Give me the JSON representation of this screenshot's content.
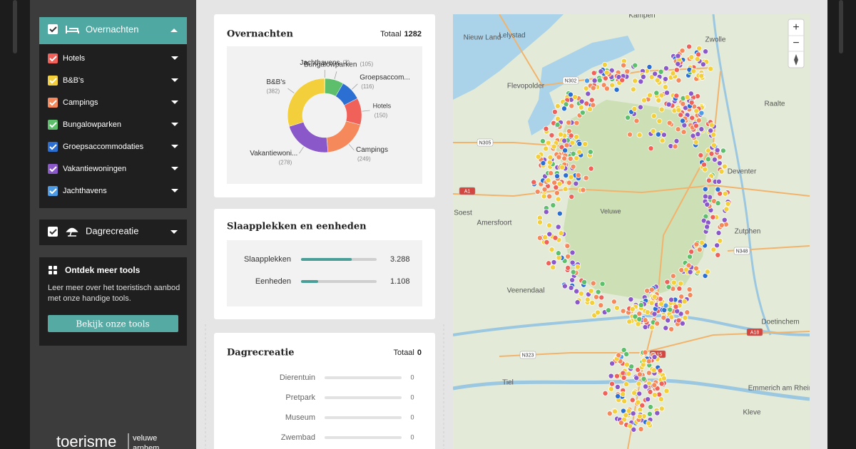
{
  "sidebar": {
    "overnachten": {
      "title": "Overnachten",
      "items": [
        {
          "label": "Hotels",
          "color": "#ef6159"
        },
        {
          "label": "B&B's",
          "color": "#f4cf3c"
        },
        {
          "label": "Campings",
          "color": "#f6895c"
        },
        {
          "label": "Bungalowparken",
          "color": "#5dbf6b"
        },
        {
          "label": "Groepsaccommodaties",
          "color": "#2c6fd3"
        },
        {
          "label": "Vakantiewoningen",
          "color": "#8a58c9"
        },
        {
          "label": "Jachthavens",
          "color": "#4b9be6"
        }
      ]
    },
    "dagrecreatie": {
      "title": "Dagrecreatie"
    },
    "tools": {
      "title": "Ontdek meer tools",
      "text_lines": [
        "Leer meer over het toeristisch aanbod",
        "met onze handige tools."
      ],
      "button": "Bekijk onze tools"
    },
    "logo": {
      "brand": "toerisme",
      "region": "veluwe",
      "city": "arnhem"
    }
  },
  "chart_data": [
    {
      "type": "pie",
      "title": "Overnachten",
      "total_label": "Totaal",
      "total": 1282,
      "categories": [
        "Jachthavens",
        "Bungalowparken",
        "Groepsaccom...",
        "Hotels",
        "Campings",
        "Vakantiewoni...",
        "B&B's"
      ],
      "values": [
        2,
        105,
        116,
        150,
        249,
        278,
        382
      ],
      "value_labels": [
        "(2)",
        "(105)",
        "(116)",
        "(150)",
        "(249)",
        "(278)",
        "(382)"
      ],
      "colors": [
        "#4b9be6",
        "#5dbf6b",
        "#2c6fd3",
        "#ef6159",
        "#f6895c",
        "#8a58c9",
        "#f4cf3c"
      ]
    },
    {
      "type": "bar",
      "title": "Slaapplekken en eenheden",
      "categories": [
        "Slaapplekken",
        "Eenheden"
      ],
      "values": [
        3288,
        1108
      ],
      "value_labels": [
        "3.288",
        "1.108"
      ],
      "xlim": [
        0,
        4900
      ],
      "color": "#4a9e98"
    },
    {
      "type": "bar",
      "title": "Dagrecreatie",
      "total_label": "Totaal",
      "total": 0,
      "categories": [
        "Dierentuin",
        "Pretpark",
        "Museum",
        "Zwembad"
      ],
      "values": [
        0,
        0,
        0,
        0
      ],
      "xlim": [
        0,
        1
      ],
      "color": "#4a9e98"
    }
  ],
  "map": {
    "places": [
      "Kampen",
      "Nieuw Land",
      "Lelystad",
      "Zwolle",
      "Flevopolder",
      "Raalte",
      "Soest",
      "Amersfoort",
      "Veluwe",
      "Deventer",
      "Zutphen",
      "Veenendaal",
      "Doetinchem",
      "Tiel",
      "Emmerich am Rhein",
      "Kleve"
    ],
    "roads": [
      "N305",
      "N302",
      "A1",
      "A18",
      "N348",
      "N323",
      "A15"
    ],
    "zoom_in": "+",
    "zoom_out": "−"
  }
}
